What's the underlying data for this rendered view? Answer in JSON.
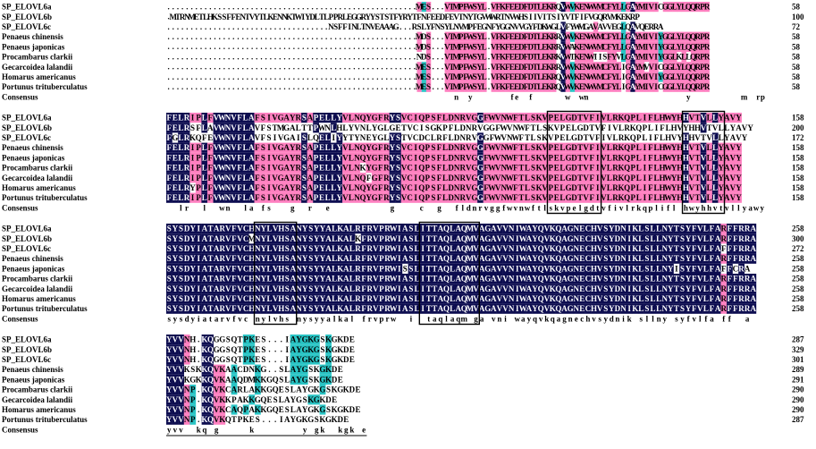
{
  "sequence_names": [
    "SP_ELOVL6a",
    "SP_ELOVL6b",
    "SP_ELOVL6c",
    "Penaeus chinensis",
    "Penaeus japonicas",
    "Procambarus clarkii",
    "Gecarcoidea lalandii",
    "Homarus americanus",
    "Portunus trituberculatus"
  ],
  "consensus_label": "Consensus",
  "colors": {
    "identical": "#0d0d50",
    "high": "#ff7fbf",
    "medium": "#29c4c4",
    "text_on_dark": "#ffffff",
    "text_plain": "#000000"
  },
  "blocks": [
    {
      "rows": [
        "......................................................MES...VTMPFWSYL.VFKFEEDFDTLEKRQVWVKENWVMCFYLLGAYMIVICGGLYLQQRPR",
        ".MTRNMETLHKSSFFENTVYTLKENNKTWIYDLTLPPRLEGGRYYSTSTFYRYTFNFEEDFEVTNYTGVWWRTNVWHSIIVITSIYVTFIFVGQRVMKEKRP",
        "...................................NSFFINLTNVEAAAG...RSLYFNSYLNVMPFEGNFYGGNVVGYFDKWGLVFYWMGAVAVVEGLQAVQERRA",
        "......................................................MDS...VTMPFWSYL.VFKFEEDFDTLEKRRVWVKENWVMCFYLLGAYMIVIYGGLYLQQRPR",
        "......................................................MDS...VTMPFWSYL.VFKFEEDFDTLEKRRVWAKENWVMCFYLLGAYMIVIYGGLYLQQRPR",
        "......................................................NDS...VTMPFWSYL.VFKFEEDFDTLEKRKVWTKENWIISFYVLGAYMIVIYGGLKLLQRPR",
        "......................................................MES...VTMPFWSYL.VFKFEEDFDTLEKRRVWVKENWVMCFYLIGAYMVVICGGLYLQQRPR",
        "......................................................MES...VTMPFWSYL.VFKFEEDFDTLEKRQVWVKENWVMCFYLIGAYMIVIYGGLYLQQRPR",
        "......................................................MES...VTMPFWSYL.VFKFEEDFDTLEKRQVWVKENWVMCFYLIGAYMIVICGGLYLQQRPR"
      ],
      "ends": [
        "58",
        "100",
        "72",
        "58",
        "58",
        "58",
        "58",
        "58",
        "58"
      ],
      "consensus": "..............................................................n..y........fe..f.......w..wn.....................y...........m..rp"
    },
    {
      "rows": [
        "FELRIPLFVWNVFLAFSIVGAYRSAPELLYVLNQYGFRYSVCIQPSFLDNRVGGFWVNWFTLSKVPELGDTVFIVLRKQPLIFLHWYHHVTVLLYAVY",
        "FELRSFLAVWNVFLAVFSTMGALTTPWNLHLYVNLYGLGETVCISGKPFLDNRVGGFWVNWFTLSKVPELGDTVFIVLRKQPLIFLHVYHHVTVLLYAVY",
        "FGLRKQFEVWNVFLAVFSIVGAISLQELIYYTYNEYGLYSTVCDCLRFLDNRVGGFWVNWFTLSKVPELGDTVFIVLRKQPLIFLHVYHHVTVLLYAVY",
        "FELRIPLFVWNVFLAFSIVGAYRSAPELLYVLNQYGFRYSVCIQPSFLDNRVGGFWVNWFTLSKVPELGDTVFIVLRKQPLIFLHWYHHVTVLLYAVY",
        "FELRIPLFVWNVFLAFSIVGAYRSAPELLYVLNQYGFRYSVCIQPSFLDNRVGGFWVNWFTLSKVPELGDTVFIVLRKQPLIFLHWYHHVTVLLYAVY",
        "FELRIPLFVWNVFLAFSIVGAYRSAPELLYVLNKYGFRYSVCIQPSFLDNRVGGFWVNWFTLSKVPELGDTVFIVLRKQPLIFLHWYHHVTVLLYAVY",
        "FELRIPLFVWNVFLAFSIVGAYRSAPELLYVLNQFGFRYSVCIQPSFLDNRVGGFWVNWFTLSKVPELGDTVFIVLRKQPLIFLHWYHHVTVLLYAVY",
        "FELRYPLFVWNVFLAFSIVGAYRSAPELLYVLNQYGFRYSVCIQPSFLDNRVGGFWVNWFTLSKVPELGDTVFIVLRKQPLIFLHWYHHVTVLLYAVY",
        "FELRIPLFVWNVFLAFSIVGAYRSAPELLYVLNQYGFRYSVCIQPSFLDNRVGGFWVNWFTLSKVPELGDTVFIVLRKQPLIFLHWYHHVTVLLYAVY"
      ],
      "ends": [
        "158",
        "200",
        "172",
        "158",
        "158",
        "158",
        "158",
        "158",
        "158"
      ],
      "consensus": "..lr..l..wn..la.fs...g..r..e..........g....c..g..fldnrvggfwvnwftlskvpelgdtvfivlrkqplifl.hwyhhvtvllyawy"
    },
    {
      "rows": [
        "SYSDYIATARVFVCHNYLVHSANYSYYALKALRFRVPRWIASLITTAQLAQMVAGAVVNIWAYQVKQAGNECHVSYDNIKLSLLNYTSYFVLFARFFRRA",
        "SYSDYIATARVFVCMNYLVHSANYSYYALKALKFRVPRWIASLITTAQLAQMVAGAVVNIWAYQVKQAGNECHVSYDNIKLSLLNYTSYFVLFARFFRRA",
        "SYSDYIATARVFVCHNYLVHSANYSYYALKALRFRVPRWIASLITTAQLAQMVAGAVVNIWAYQVKQAGNECHVSYDNIKLSLLNYTSYFVLFAFFFRRA",
        "SYSDYIATARVFVCHNYLVHSANYSYYALKALRFRVPRWIASLITTAQLAQMVAGAVVNIWAYQVKQAGNECHVSYDNIKLSLLNYTSYFVLFARFFRRA",
        "SYSDYIATARVFVCHNYLVHSANYSYYALKALRFRVPRWISSLITTAQLAQMVAGAVVNIWAYQVKQAGNECHVSYDNIKLSLLNYISYFVLFAFFCRA",
        "SYSDYIATARVFVCHNYLVHSANYSYYALKALRFRVPRWIASLITTAQLAQMVAGAVVNIWAYQVKQAGNECHVSYDNIKLSLLNYTSYFVLFARFFRRA",
        "SYSDYIATARVFVCHNYLVHSANYSYYALKALRFRVPRWIASLITTAQLAQMVAGAVVNIWAYQVKQAGNECHVSYDNIKLSLLNYTSYFVLFARFFRRA",
        "SYSDYIATARVFVCHNYLVHSANYSYYALKALRFRVPRWIASLITTAQLAQMVAGAVVNIWAYQVKQAGNECHVSYDNIKLSLLNYTSYFVLFARFFRRA",
        "SYSDYIATARVFVCHNYLVHSANYSYYALKALRFRVPRWIASLITTAQLAQMVAGAVVNIWAYQVKQAGNECHVSYDNIKLSLLNYTSYFVLFARFFRRA"
      ],
      "ends": [
        "258",
        "300",
        "272",
        "258",
        "258",
        "258",
        "258",
        "258",
        "258"
      ],
      "consensus": "sysdyiatarvfvc.nylvhs.nysyyalkal.frvprw..i..taqlaqm.ga.vni.wayqvkqagnechvsydnik.sllny.syfvlfa.ff..a"
    },
    {
      "rows": [
        "YVVNH.KQGGSQTPKES...IAYGKGSKGKDE",
        "YVVNH.KQGGSQTPKES...IAYGKGSKGKDE",
        "YVVNH.KQGGSQTPKES...IAYGKGSKGKDE",
        "YVVKSKKQVKAACDNKG..SLAYGSKGKDE",
        "YVVKGKKQVKAAQDMKKGQSLAYGSKGKDE",
        "YVVNP.KQVKCARLAKKGQESLAYGKGSKGKDE",
        "YVVNP.KQVKKPAKKGQESLAYGSKGKDE",
        "YVVNP.KQVKCAQPAKKGQESLAYGKGSKGKDE",
        "YVVNP.KQVKQTPKES...IAYGKGSKGKDE"
      ],
      "ends": [
        "287",
        "329",
        "301",
        "289",
        "291",
        "290",
        "290",
        "290",
        "287"
      ],
      "consensus": "yvv..kq.g.....k........y.gk..kgk.e"
    }
  ]
}
